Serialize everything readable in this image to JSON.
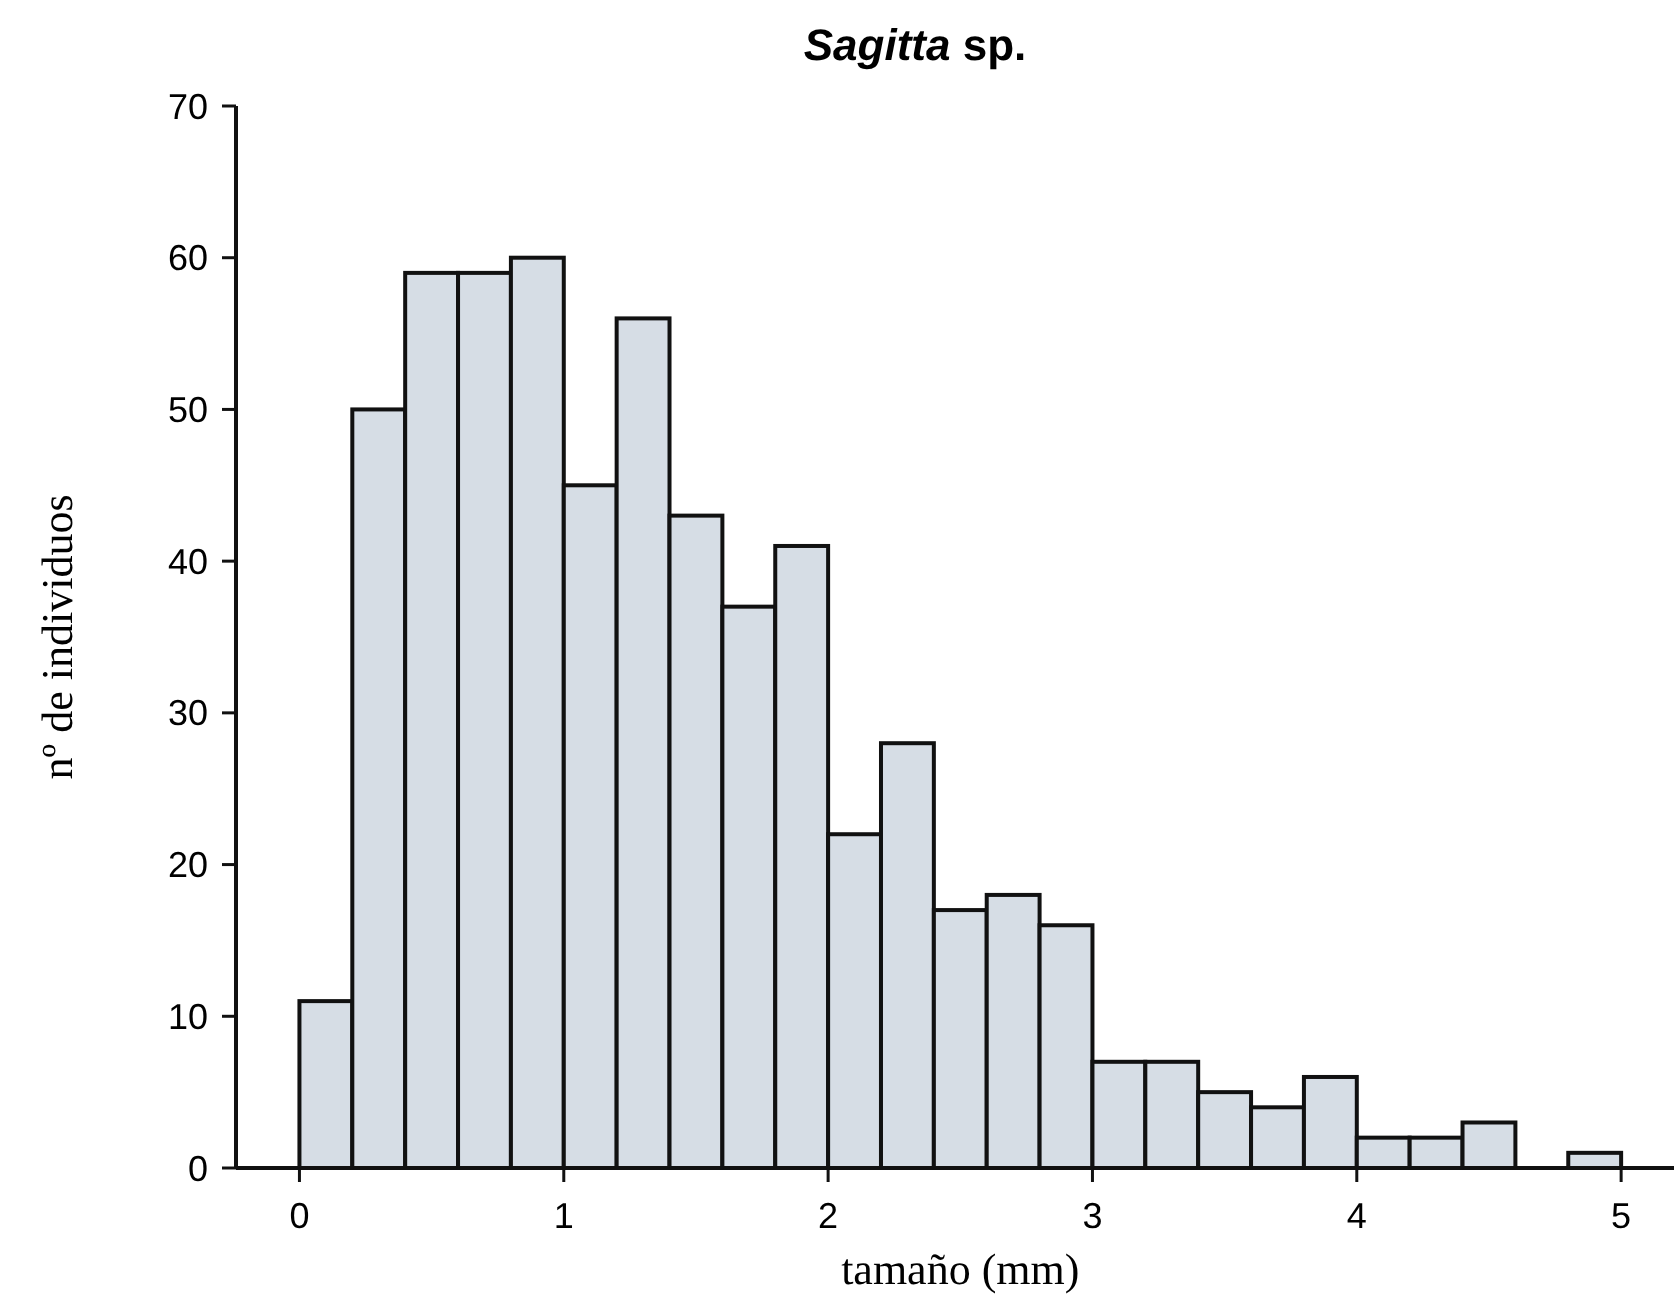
{
  "chart_data": {
    "type": "histogram",
    "title": "Sagitta sp.",
    "xlabel": "tamaño (mm)",
    "ylabel": "nº de individuos",
    "bins": [
      0,
      0.2,
      0.4,
      0.6,
      0.8,
      1,
      1.2,
      1.4,
      1.6,
      1.8,
      2,
      2.2,
      2.4,
      2.6,
      2.8,
      3,
      3.2,
      3.4,
      3.6,
      3.8,
      4,
      4.2,
      4.4,
      4.6,
      4.8,
      5
    ],
    "values": [
      11,
      50,
      59,
      59,
      60,
      45,
      56,
      43,
      37,
      41,
      22,
      28,
      17,
      18,
      16,
      7,
      7,
      5,
      4,
      6,
      2,
      2,
      3,
      0,
      1
    ],
    "color": "#d6dde5",
    "xlim": [
      -0.24,
      5.2
    ],
    "ylim": [
      0,
      70
    ],
    "xticks": [
      0,
      1,
      2,
      3,
      4,
      5
    ],
    "yticks": [
      0,
      10,
      20,
      30,
      40,
      50,
      60,
      70
    ],
    "grid": false
  }
}
